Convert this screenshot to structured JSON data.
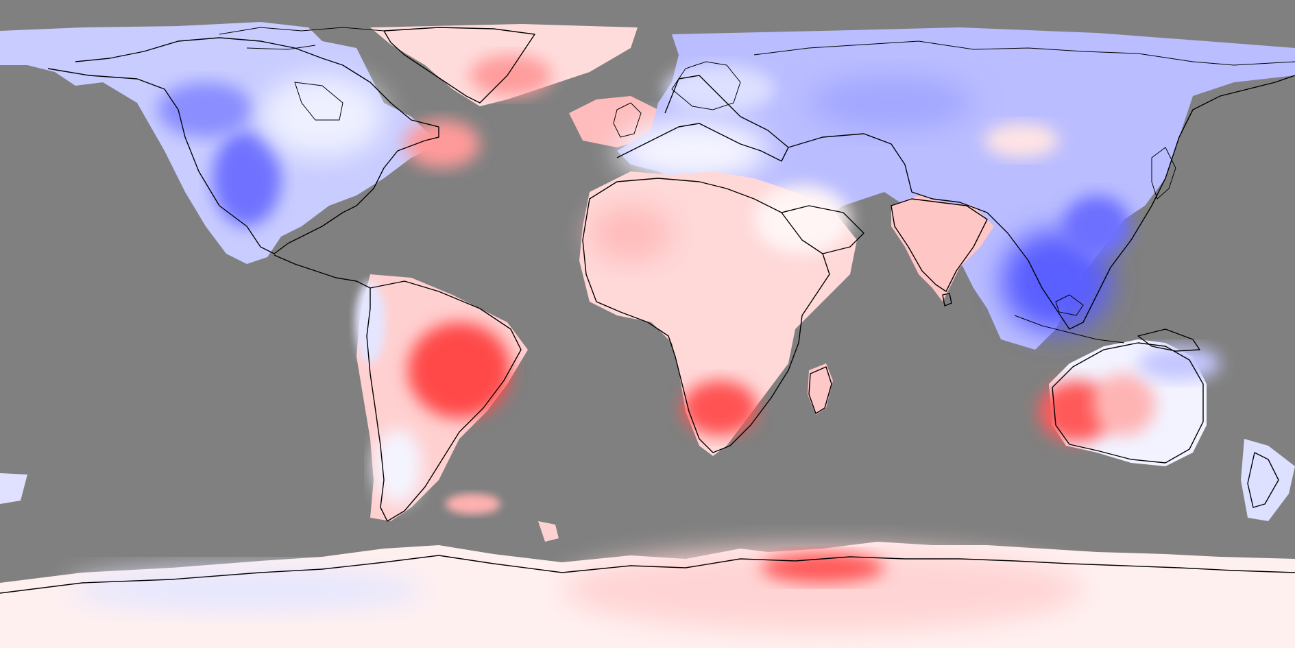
{
  "map": {
    "projection": "equirectangular",
    "background_color": "#808080",
    "color_scale": {
      "negative": "#4f4fff",
      "neutral": "#fffcfc",
      "positive": "#ff3a3a"
    },
    "coastlines": "black",
    "labels": []
  }
}
